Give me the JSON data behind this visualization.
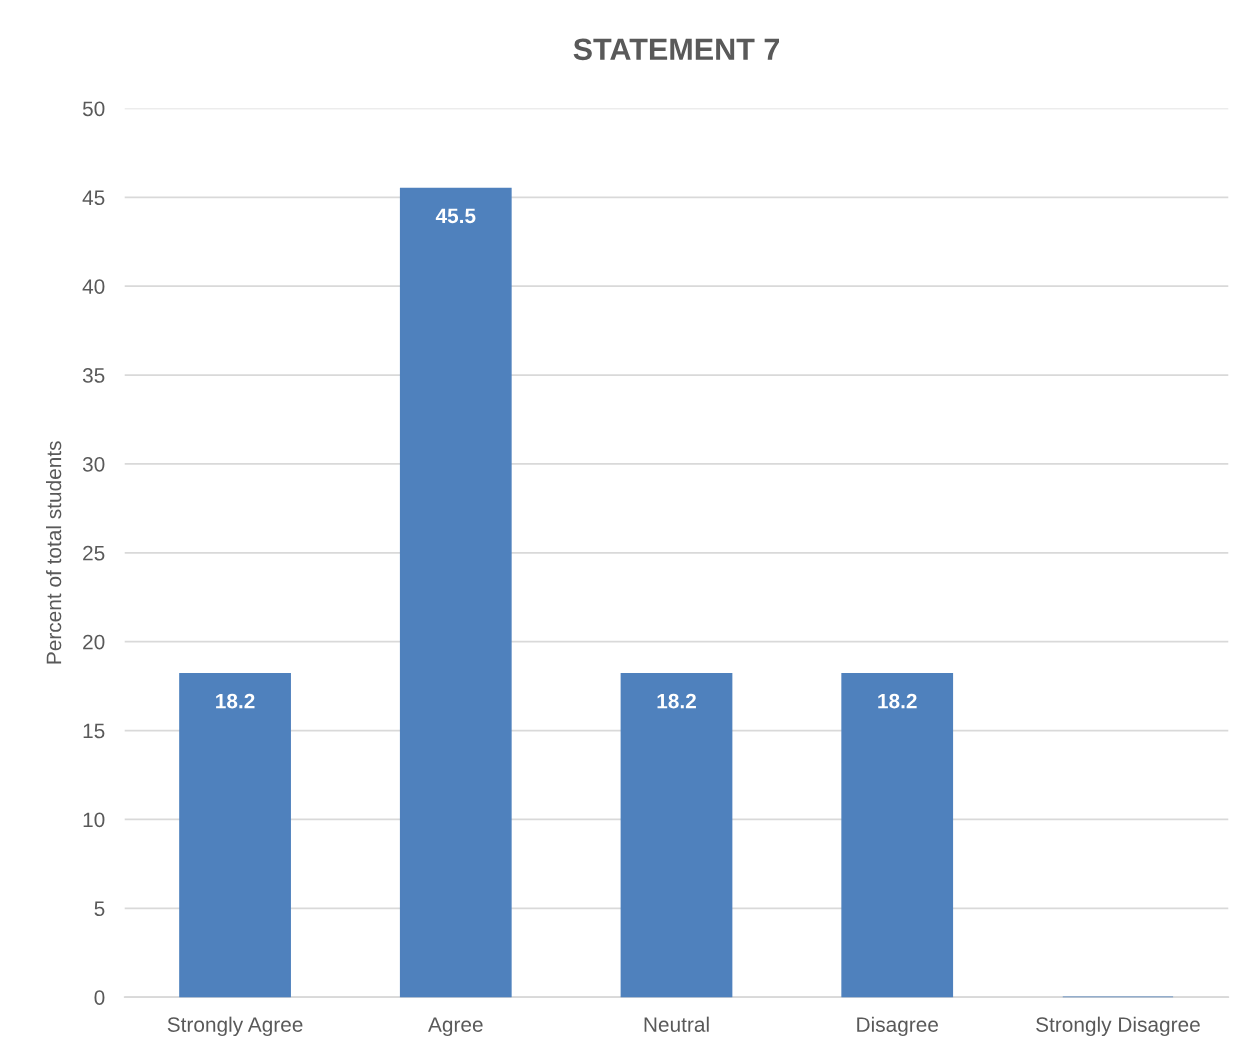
{
  "chart_data": {
    "type": "bar",
    "title": "STATEMENT 7",
    "ylabel": "Percent of total students",
    "categories": [
      "Strongly Agree",
      "Agree",
      "Neutral",
      "Disagree",
      "Strongly Disagree"
    ],
    "values": [
      18.2,
      45.5,
      18.2,
      18.2,
      0
    ],
    "value_labels": [
      "18.2",
      "45.5",
      "18.2",
      "18.2",
      null
    ],
    "color": "#4f81bd",
    "ylim": [
      0,
      50
    ],
    "yticks": [
      0,
      5,
      10,
      15,
      20,
      25,
      30,
      35,
      40,
      45,
      50
    ],
    "grid": "y"
  }
}
